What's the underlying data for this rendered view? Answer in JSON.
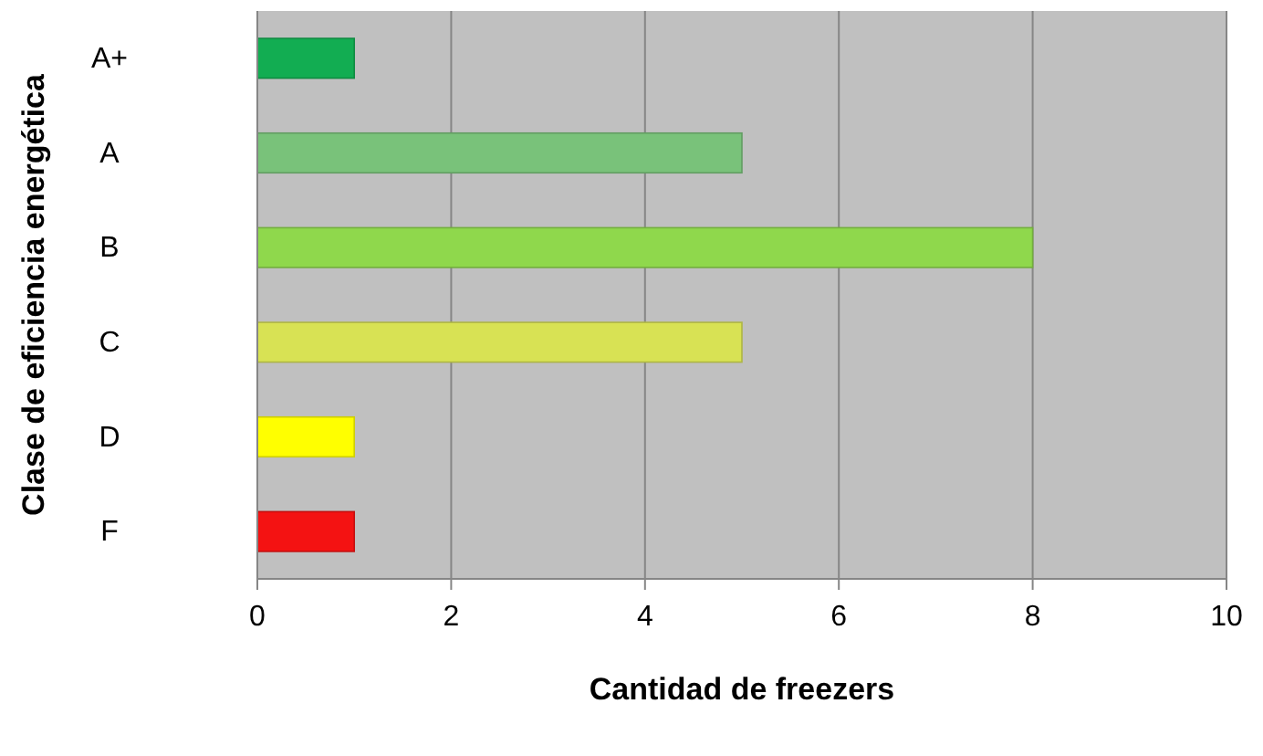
{
  "chart_data": {
    "type": "bar",
    "orientation": "horizontal",
    "xlabel": "Cantidad de freezers",
    "ylabel": "Clase de eficiencia energética",
    "categories": [
      "A+",
      "A",
      "B",
      "C",
      "D",
      "F"
    ],
    "values": [
      1,
      5,
      8,
      5,
      1,
      1
    ],
    "colors": [
      "#12ad52",
      "#79c27a",
      "#8fd84c",
      "#d8e254",
      "#ffff00",
      "#f41212"
    ],
    "xlim": [
      0,
      10
    ],
    "xticks": [
      0,
      2,
      4,
      6,
      8,
      10
    ],
    "grid": "x"
  }
}
